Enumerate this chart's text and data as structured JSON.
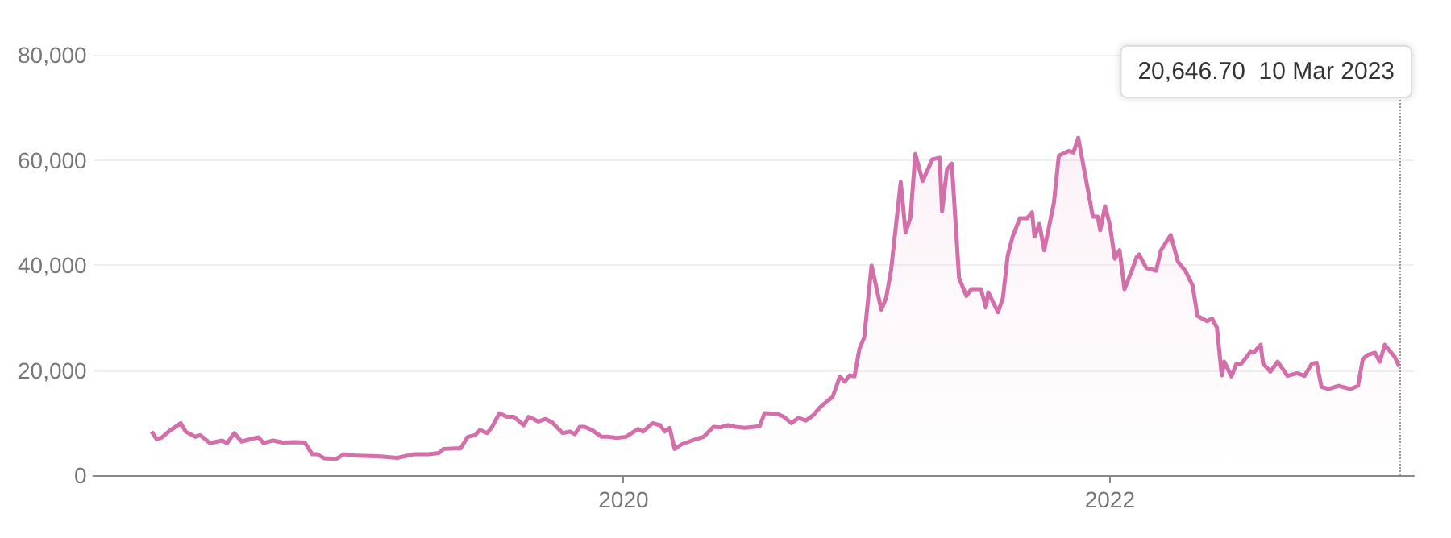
{
  "chart_data": {
    "type": "area",
    "x": [
      2018.06,
      2018.08,
      2018.1,
      2018.13,
      2018.18,
      2018.2,
      2018.22,
      2018.24,
      2018.26,
      2018.3,
      2018.35,
      2018.37,
      2018.4,
      2018.43,
      2018.47,
      2018.5,
      2018.52,
      2018.56,
      2018.6,
      2018.65,
      2018.69,
      2018.72,
      2018.74,
      2018.77,
      2018.82,
      2018.85,
      2018.9,
      2018.99,
      2019.07,
      2019.14,
      2019.2,
      2019.24,
      2019.26,
      2019.31,
      2019.33,
      2019.36,
      2019.39,
      2019.41,
      2019.44,
      2019.46,
      2019.49,
      2019.52,
      2019.55,
      2019.59,
      2019.61,
      2019.63,
      2019.65,
      2019.68,
      2019.7,
      2019.71,
      2019.75,
      2019.78,
      2019.8,
      2019.82,
      2019.84,
      2019.87,
      2019.91,
      2019.94,
      2019.97,
      2020.01,
      2020.06,
      2020.08,
      2020.12,
      2020.15,
      2020.17,
      2020.19,
      2020.21,
      2020.24,
      2020.27,
      2020.3,
      2020.33,
      2020.37,
      2020.4,
      2020.43,
      2020.46,
      2020.5,
      2020.56,
      2020.58,
      2020.63,
      2020.66,
      2020.69,
      2020.72,
      2020.75,
      2020.78,
      2020.81,
      2020.86,
      2020.89,
      2020.91,
      2020.93,
      2020.95,
      2020.97,
      2020.99,
      2021.02,
      2021.06,
      2021.08,
      2021.1,
      2021.14,
      2021.16,
      2021.18,
      2021.2,
      2021.23,
      2021.27,
      2021.3,
      2021.31,
      2021.33,
      2021.35,
      2021.38,
      2021.41,
      2021.43,
      2021.47,
      2021.49,
      2021.5,
      2021.54,
      2021.56,
      2021.58,
      2021.6,
      2021.63,
      2021.66,
      2021.68,
      2021.69,
      2021.71,
      2021.73,
      2021.77,
      2021.79,
      2021.83,
      2021.85,
      2021.87,
      2021.9,
      2021.93,
      2021.95,
      2021.96,
      2021.98,
      2022.0,
      2022.02,
      2022.04,
      2022.06,
      2022.09,
      2022.11,
      2022.12,
      2022.15,
      2022.17,
      2022.19,
      2022.21,
      2022.25,
      2022.28,
      2022.31,
      2022.34,
      2022.36,
      2022.4,
      2022.42,
      2022.44,
      2022.46,
      2022.47,
      2022.5,
      2022.52,
      2022.54,
      2022.58,
      2022.59,
      2022.62,
      2022.63,
      2022.66,
      2022.69,
      2022.73,
      2022.77,
      2022.8,
      2022.83,
      2022.85,
      2022.87,
      2022.9,
      2022.94,
      2022.99,
      2023.02,
      2023.04,
      2023.06,
      2023.09,
      2023.11,
      2023.13,
      2023.17,
      2023.19
    ],
    "series": [
      {
        "color": "#d36fa9",
        "values": [
          8300,
          6900,
          7100,
          8300,
          9900,
          8300,
          7800,
          7300,
          7600,
          6100,
          6600,
          6100,
          8000,
          6400,
          6900,
          7200,
          6100,
          6600,
          6200,
          6300,
          6200,
          4000,
          4000,
          3200,
          3100,
          4000,
          3700,
          3600,
          3300,
          4000,
          4000,
          4200,
          5000,
          5100,
          5100,
          7300,
          7600,
          8600,
          8000,
          9200,
          11800,
          11100,
          11100,
          9500,
          11100,
          10700,
          10200,
          10700,
          10200,
          9900,
          8000,
          8300,
          7800,
          9200,
          9200,
          8600,
          7300,
          7300,
          7100,
          7300,
          8800,
          8300,
          9900,
          9500,
          8300,
          9000,
          5000,
          5900,
          6400,
          6900,
          7300,
          9200,
          9100,
          9500,
          9200,
          9000,
          9300,
          11800,
          11700,
          11100,
          9900,
          10900,
          10400,
          11400,
          13000,
          14900,
          18800,
          17800,
          19000,
          18800,
          24000,
          26200,
          39900,
          31500,
          33700,
          38900,
          55800,
          46200,
          49000,
          61100,
          56000,
          60100,
          60400,
          50200,
          58200,
          59300,
          37500,
          34100,
          35400,
          35400,
          31900,
          34800,
          31000,
          33700,
          41800,
          45400,
          48900,
          48900,
          50000,
          45400,
          47800,
          42800,
          51900,
          60800,
          61700,
          61400,
          64200,
          56700,
          49200,
          49200,
          46600,
          51200,
          47600,
          41200,
          42800,
          35400,
          38900,
          41500,
          42000,
          39400,
          39200,
          38900,
          42800,
          45700,
          40600,
          38900,
          36100,
          30300,
          29300,
          29800,
          28100,
          19000,
          21600,
          18800,
          21200,
          21200,
          23600,
          23300,
          24800,
          21200,
          19700,
          21600,
          18900,
          19400,
          18900,
          21200,
          21400,
          16800,
          16400,
          17000,
          16400,
          17000,
          22100,
          22900,
          23300,
          21600,
          24800,
          22600,
          20646.7
        ]
      }
    ],
    "xlim": [
      2017.82,
      2023.25
    ],
    "xticks": [
      2020,
      2022
    ],
    "ylim": [
      0,
      80000
    ],
    "yticks": [
      0,
      {
        "value": 20000,
        "label": "20,000"
      },
      {
        "value": 40000,
        "label": "40,000"
      },
      {
        "value": 60000,
        "label": "60,000"
      },
      {
        "value": 80000,
        "label": "80,000"
      }
    ],
    "grid": "y",
    "ref_lines": [
      {
        "axis": "x",
        "value": 2023.19,
        "line_style": "dotted",
        "color": "#999999"
      }
    ],
    "annotations": [
      "20,646.70  10 Mar 2023"
    ]
  }
}
